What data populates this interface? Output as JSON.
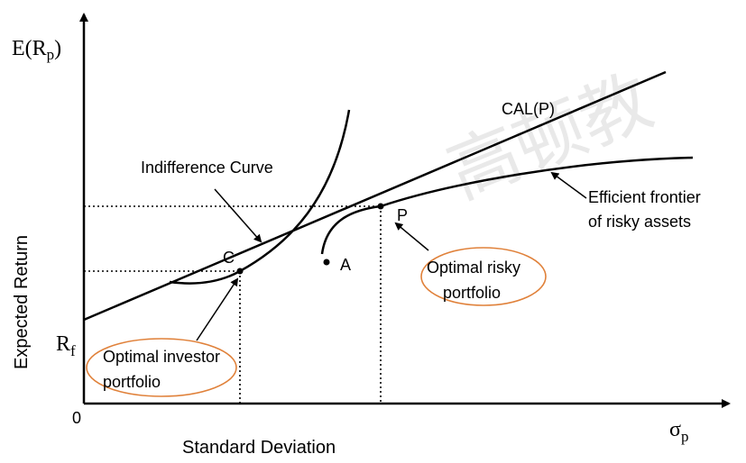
{
  "watermark": "高顿教",
  "axes": {
    "y_symbol": "E(R",
    "y_symbol_sub": "p",
    "y_symbol_close": ")",
    "y_title": "Expected Return",
    "x_symbol": "σ",
    "x_symbol_sub": "p",
    "x_title": "Standard Deviation",
    "origin": "0",
    "rf": "R",
    "rf_sub": "f"
  },
  "labels": {
    "cal": "CAL(P)",
    "indifference_curve": "Indifference Curve",
    "efficient_frontier_line1": "Efficient frontier",
    "efficient_frontier_line2": "of risky assets",
    "point_c": "C",
    "point_p": "P",
    "point_a": "A",
    "optimal_risky_line1": "Optimal risky",
    "optimal_risky_line2": "portfolio",
    "optimal_investor_line1": "Optimal investor",
    "optimal_investor_line2": "portfolio"
  },
  "colors": {
    "ink": "#000000",
    "ellipse": "#e0813a",
    "watermark": "#e9e9e9"
  }
}
